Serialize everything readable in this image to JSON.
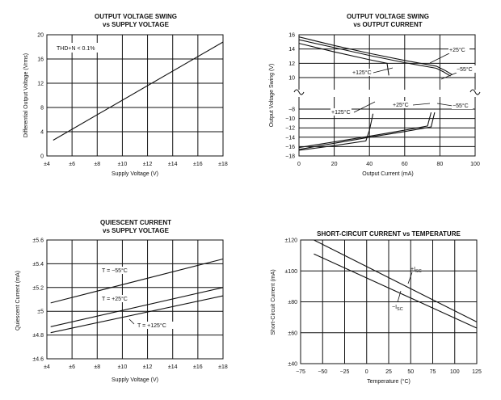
{
  "chart_data": [
    {
      "type": "line",
      "title": "OUTPUT VOLTAGE SWING",
      "subtitle": "vs SUPPLY VOLTAGE",
      "xlabel": "Supply Voltage (V)",
      "ylabel": "Differential Output Voltage (Vrms)",
      "xlim": [
        4,
        18
      ],
      "ylim": [
        0,
        20
      ],
      "xticks": [
        4,
        6,
        8,
        10,
        12,
        14,
        16,
        18
      ],
      "xtick_labels": [
        "±4",
        "±6",
        "±8",
        "±10",
        "±12",
        "±14",
        "±16",
        "±18"
      ],
      "yticks": [
        0,
        4,
        8,
        12,
        16,
        20
      ],
      "ytick_labels": [
        "0",
        "4",
        "8",
        "12",
        "16",
        "20"
      ],
      "annotation": "THD+N < 0.1%",
      "series": [
        {
          "name": "Output Swing",
          "x": [
            4.5,
            18
          ],
          "y": [
            2.6,
            18.8
          ]
        }
      ]
    },
    {
      "type": "line",
      "title": "OUTPUT VOLTAGE SWING",
      "subtitle": "vs OUTPUT CURRENT",
      "xlabel": "Output Current (mA)",
      "ylabel": "Output Voltage Swing (V)",
      "xlim": [
        0,
        100
      ],
      "xticks": [
        0,
        20,
        40,
        60,
        80,
        100
      ],
      "xtick_labels": [
        "0",
        "20",
        "40",
        "60",
        "80",
        "100"
      ],
      "upper_ylim": [
        10,
        16
      ],
      "upper_yticks": [
        10,
        12,
        14,
        16
      ],
      "upper_ytick_labels": [
        "10",
        "12",
        "14",
        "16"
      ],
      "lower_ylim": [
        -18,
        -8
      ],
      "lower_yticks": [
        -18,
        -16,
        -14,
        -12,
        -10,
        -8
      ],
      "lower_ytick_labels": [
        "−18",
        "−16",
        "−14",
        "−12",
        "−10",
        "−8"
      ],
      "series": [
        {
          "name": "+125°C",
          "label": "+125°C",
          "x": [
            0,
            20,
            40,
            50,
            51
          ],
          "y": [
            14.8,
            13.6,
            12.5,
            12.0,
            10.3
          ]
        },
        {
          "name": "+25°C",
          "label": "+25°C",
          "x": [
            0,
            20,
            40,
            60,
            78,
            82,
            86
          ],
          "y": [
            15.3,
            14.2,
            13.1,
            12.1,
            11.3,
            10.8,
            10.2
          ]
        },
        {
          "name": "−55°C",
          "label": "−55°C",
          "x": [
            0,
            20,
            40,
            60,
            78,
            83,
            87
          ],
          "y": [
            15.7,
            14.5,
            13.4,
            12.4,
            11.6,
            11.0,
            10.4
          ]
        },
        {
          "name": "+125°C",
          "label": "+125°C",
          "x": [
            0,
            20,
            38,
            40,
            42
          ],
          "y": [
            -16.8,
            -15.8,
            -14.8,
            -12.5,
            -9.0
          ]
        },
        {
          "name": "+25°C",
          "label": "+25°C",
          "x": [
            0,
            20,
            40,
            60,
            73,
            75
          ],
          "y": [
            -16.2,
            -15.0,
            -13.8,
            -12.5,
            -11.6,
            -8.7
          ]
        },
        {
          "name": "−55°C",
          "label": "−55°C",
          "x": [
            0,
            20,
            40,
            60,
            75,
            77
          ],
          "y": [
            -16.6,
            -15.3,
            -14.0,
            -12.8,
            -11.8,
            -8.7
          ]
        }
      ]
    },
    {
      "type": "line",
      "title": "QUIESCENT CURRENT",
      "subtitle": "vs SUPPLY VOLTAGE",
      "xlabel": "Supply Voltage (V)",
      "ylabel": "Quiescent Current (mA)",
      "xlim": [
        4,
        18
      ],
      "ylim": [
        4.6,
        5.6
      ],
      "xticks": [
        4,
        6,
        8,
        10,
        12,
        14,
        16,
        18
      ],
      "xtick_labels": [
        "±4",
        "±6",
        "±8",
        "±10",
        "±12",
        "±14",
        "±16",
        "±18"
      ],
      "yticks": [
        4.6,
        4.8,
        5.0,
        5.2,
        5.4,
        5.6
      ],
      "ytick_labels": [
        "±4.6",
        "±4.8",
        "±5",
        "±5.2",
        "±5.4",
        "±5.6"
      ],
      "series": [
        {
          "name": "T = −55°C",
          "label": "T = −55°C",
          "x": [
            4.3,
            18
          ],
          "y": [
            5.07,
            5.44
          ]
        },
        {
          "name": "T = +25°C",
          "label": "T = +25°C",
          "x": [
            4.3,
            18
          ],
          "y": [
            4.87,
            5.2
          ]
        },
        {
          "name": "T = +125°C",
          "label": "T = +125°C",
          "x": [
            4.3,
            18
          ],
          "y": [
            4.82,
            5.13
          ]
        }
      ]
    },
    {
      "type": "line",
      "title": "SHORT-CIRCUIT CURRENT vs TEMPERATURE",
      "subtitle": "",
      "xlabel": "Temperature (°C)",
      "ylabel": "Short-Circuit Current (mA)",
      "xlim": [
        -75,
        125
      ],
      "ylim": [
        40,
        120
      ],
      "xticks": [
        -75,
        -50,
        -25,
        0,
        25,
        50,
        75,
        100,
        125
      ],
      "xtick_labels": [
        "−75",
        "−50",
        "−25",
        "0",
        "25",
        "50",
        "75",
        "100",
        "125"
      ],
      "yticks": [
        40,
        60,
        80,
        100,
        120
      ],
      "ytick_labels": [
        "±40",
        "±60",
        "±80",
        "±100",
        "±120"
      ],
      "series": [
        {
          "name": "+ISC",
          "x": [
            -60,
            125
          ],
          "y": [
            120,
            67
          ]
        },
        {
          "name": "−ISC",
          "x": [
            -60,
            125
          ],
          "y": [
            111,
            63
          ]
        }
      ],
      "labels": [
        {
          "main": "+I",
          "sub": "SC"
        },
        {
          "main": "−I",
          "sub": "SC"
        }
      ]
    }
  ]
}
